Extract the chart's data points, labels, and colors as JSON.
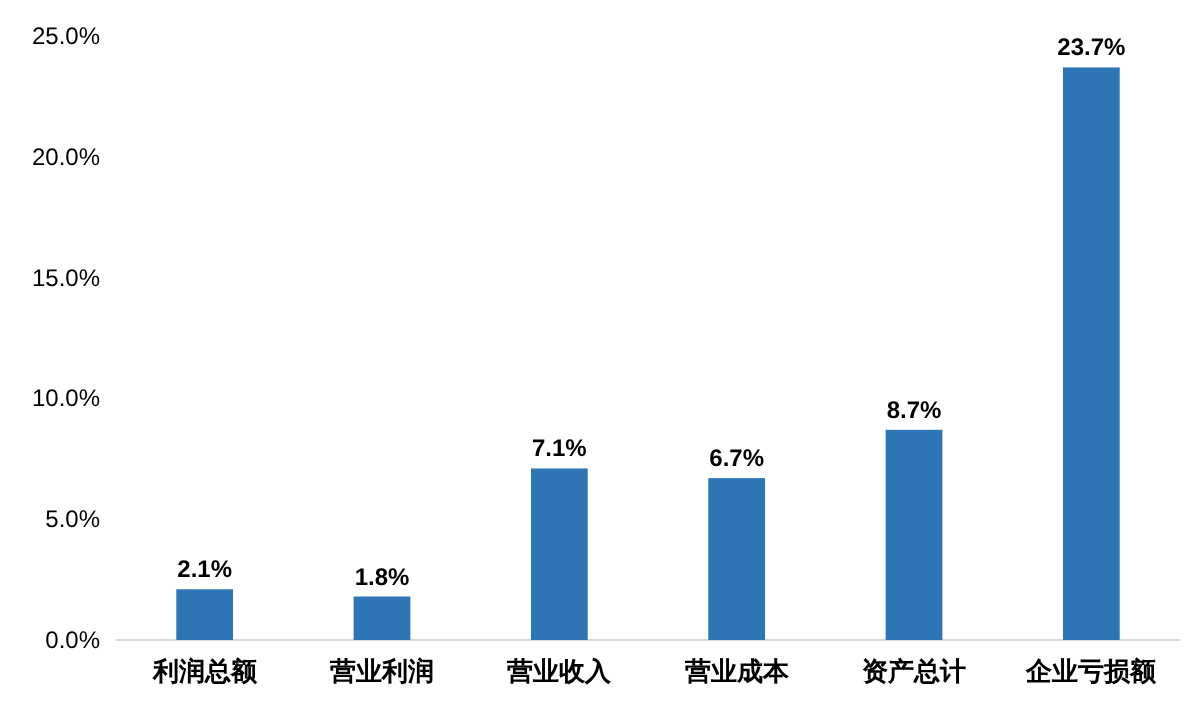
{
  "chart_data": {
    "type": "bar",
    "categories": [
      "利润总额",
      "营业利润",
      "营业收入",
      "营业成本",
      "资产总计",
      "企业亏损额"
    ],
    "values": [
      2.1,
      1.8,
      7.1,
      6.7,
      8.7,
      23.7
    ],
    "value_labels": [
      "2.1%",
      "1.8%",
      "7.1%",
      "6.7%",
      "8.7%",
      "23.7%"
    ],
    "color": "#2e75b6",
    "ylim": [
      0,
      25
    ],
    "yticks": [
      {
        "value": 0,
        "label": "0.0%"
      },
      {
        "value": 5,
        "label": "5.0%"
      },
      {
        "value": 10,
        "label": "10.0%"
      },
      {
        "value": 15,
        "label": "15.0%"
      },
      {
        "value": 20,
        "label": "20.0%"
      },
      {
        "value": 25,
        "label": "25.0%"
      }
    ]
  }
}
